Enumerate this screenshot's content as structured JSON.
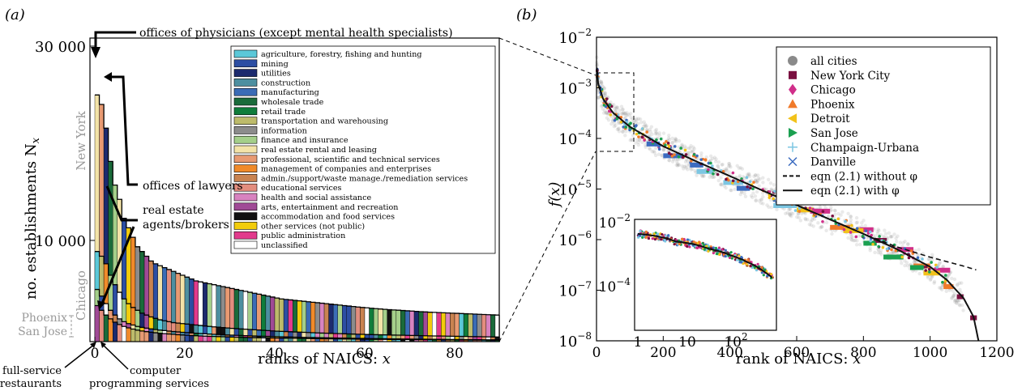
{
  "panel_a": {
    "panel_label": "(a)",
    "ylabel": "no. establishments N",
    "ylabel_sub": "x",
    "xlabel": "ranks of NAICS: ",
    "xlabel_var": "x",
    "y_ticks": [
      "30 000",
      "10 000"
    ],
    "x_ticks": [
      "0",
      "20",
      "40",
      "60",
      "80"
    ],
    "city_labels": [
      "New York",
      "Chicago",
      "Phoenix",
      "San Jose"
    ],
    "annotations": {
      "physicians": "offices of physicians (except mental health specialists)",
      "lawyers": "offices of lawyers",
      "real_estate_1": "real estate",
      "real_estate_2": "agents/brokers",
      "full_service_1": "full-service",
      "full_service_2": "restaurants",
      "computer_1": "computer",
      "computer_2": "programming services"
    },
    "legend": [
      {
        "label": "agriculture, forestry, fishing and hunting",
        "color": "#5bc8d8"
      },
      {
        "label": "mining",
        "color": "#2c4ea3"
      },
      {
        "label": "utilities",
        "color": "#1c2a6e"
      },
      {
        "label": "construction",
        "color": "#4d8fa0"
      },
      {
        "label": "manufacturing",
        "color": "#3b6cb6"
      },
      {
        "label": "wholesale trade",
        "color": "#1a6b3a"
      },
      {
        "label": "retail trade",
        "color": "#0f7d3b"
      },
      {
        "label": "transportation and warehousing",
        "color": "#bdbb6b"
      },
      {
        "label": "information",
        "color": "#8c8c8c"
      },
      {
        "label": "finance and insurance",
        "color": "#a4cf8a"
      },
      {
        "label": "real estate rental and leasing",
        "color": "#f3e3a8"
      },
      {
        "label": "professional, scientific and technical services",
        "color": "#e89a72"
      },
      {
        "label": "management of companies and enterprises",
        "color": "#f08a2a"
      },
      {
        "label": "admin./support/waste manage./remediation services",
        "color": "#c98350"
      },
      {
        "label": "educational services",
        "color": "#e38d7e"
      },
      {
        "label": "health and social assistance",
        "color": "#d883c0"
      },
      {
        "label": "arts, entertainment and recreation",
        "color": "#a04a96"
      },
      {
        "label": "accommodation and food services",
        "color": "#111111"
      },
      {
        "label": "other services (not public)",
        "color": "#f2cc0c"
      },
      {
        "label": "public administration",
        "color": "#e23a8c"
      },
      {
        "label": "unclassified",
        "color": "#ffffff"
      }
    ]
  },
  "panel_b": {
    "panel_label": "(b)",
    "ylabel": "f(x)",
    "xlabel": "rank of NAICS: ",
    "xlabel_var": "x",
    "x_ticks": [
      "0",
      "200",
      "400",
      "600",
      "800",
      "1000",
      "1200"
    ],
    "y_ticks": [
      {
        "base": "10",
        "exp": "−2"
      },
      {
        "base": "10",
        "exp": "−3"
      },
      {
        "base": "10",
        "exp": "−4"
      },
      {
        "base": "10",
        "exp": "−5"
      },
      {
        "base": "10",
        "exp": "−6"
      },
      {
        "base": "10",
        "exp": "−7"
      },
      {
        "base": "10",
        "exp": "−8"
      }
    ],
    "inset": {
      "y_ticks": [
        {
          "base": "10",
          "exp": "−2"
        },
        {
          "base": "10",
          "exp": "−4"
        }
      ],
      "x_ticks": [
        {
          "base": "1",
          "exp": ""
        },
        {
          "base": "10",
          "exp": ""
        },
        {
          "base": "10",
          "exp": "2"
        }
      ]
    },
    "legend": [
      {
        "label": "all cities",
        "marker": "circle",
        "color": "#8a8a8a"
      },
      {
        "label": "New York City",
        "marker": "square",
        "color": "#7a1040"
      },
      {
        "label": "Chicago",
        "marker": "diamond",
        "color": "#d02f8a"
      },
      {
        "label": "Phoenix",
        "marker": "triangle-up",
        "color": "#f07a2a"
      },
      {
        "label": "Detroit",
        "marker": "triangle-left",
        "color": "#f2c21a"
      },
      {
        "label": "San Jose",
        "marker": "triangle-right",
        "color": "#1aa050"
      },
      {
        "label": "Champaign-Urbana",
        "marker": "plus",
        "color": "#7cc6e2"
      },
      {
        "label": "Danville",
        "marker": "x",
        "color": "#3c6cc0"
      },
      {
        "label": "eqn (2.1) without φ",
        "marker": "dashed-line",
        "color": "#111111"
      },
      {
        "label": "eqn (2.1) with φ",
        "marker": "solid-line",
        "color": "#111111"
      }
    ]
  },
  "chart_data": [
    {
      "type": "bar",
      "xlabel": "ranks of NAICS: x",
      "ylabel": "no. establishments N_x",
      "xlim": [
        0,
        90
      ],
      "ylim": [
        0,
        30000
      ],
      "series": [
        {
          "name": "New York",
          "values": [
            26000,
            25000,
            22500,
            19000,
            16500,
            15000,
            13000,
            12000,
            11000,
            10000,
            9500,
            9000,
            8500,
            8200,
            8000,
            7800,
            7600,
            7400,
            7200,
            7000,
            6800,
            6600,
            6400,
            6300,
            6200,
            6100,
            6000,
            5900,
            5800,
            5700,
            5600,
            5500,
            5400,
            5300,
            5200,
            5100,
            5000,
            4900,
            4800,
            4700,
            4600,
            4500,
            4450,
            4400,
            4350,
            4300,
            4250,
            4200,
            4150,
            4100,
            4050,
            4000,
            3950,
            3900,
            3850,
            3800,
            3750,
            3700,
            3650,
            3600,
            3560,
            3520,
            3480,
            3440,
            3400,
            3370,
            3340,
            3310,
            3280,
            3250,
            3220,
            3190,
            3160,
            3130,
            3100,
            3080,
            3060,
            3040,
            3020,
            3000,
            2980,
            2960,
            2940,
            2920,
            2900,
            2880,
            2860,
            2840,
            2820,
            2800
          ]
        },
        {
          "name": "Chicago",
          "values": [
            9500,
            9000,
            8200,
            7000,
            6000,
            5200,
            4500,
            4000,
            3600,
            3300,
            3000,
            2800,
            2600,
            2450,
            2300,
            2200,
            2100,
            2000,
            1950,
            1900,
            1850,
            1800,
            1750,
            1700,
            1650,
            1600,
            1560,
            1520,
            1480,
            1440,
            1400,
            1370,
            1340,
            1310,
            1280,
            1250,
            1220,
            1190,
            1160,
            1130,
            1100,
            1080,
            1060,
            1040,
            1020,
            1000,
            980,
            960,
            940,
            920,
            900,
            885,
            870,
            855,
            840,
            825,
            810,
            795,
            780,
            765,
            750,
            740,
            730,
            720,
            710,
            700,
            690,
            680,
            670,
            660,
            650,
            640,
            630,
            620,
            610,
            600,
            592,
            584,
            576,
            568,
            560,
            552,
            544,
            536,
            528,
            520,
            512,
            504,
            496,
            488
          ]
        },
        {
          "name": "Phoenix",
          "values": [
            5500,
            4800,
            4000,
            3300,
            2800,
            2400,
            2100,
            1900,
            1750,
            1600,
            1500,
            1420,
            1340,
            1270,
            1210,
            1160,
            1110,
            1060,
            1020,
            980,
            945,
            910,
            880,
            850,
            822,
            796,
            770,
            745,
            722,
            700,
            680,
            662,
            644,
            627,
            610,
            594,
            578,
            563,
            548,
            534,
            520,
            508,
            496,
            484,
            472,
            461,
            450,
            440,
            430,
            420,
            410,
            401,
            392,
            383,
            375,
            367,
            359,
            351,
            343,
            336,
            329,
            322,
            315,
            308,
            302,
            296,
            290,
            284,
            278,
            272,
            266,
            261,
            256,
            251,
            246,
            241,
            236,
            231,
            226,
            222,
            218,
            214,
            210,
            206,
            202,
            198,
            194,
            190,
            186,
            182
          ]
        },
        {
          "name": "San Jose",
          "values": [
            3800,
            3300,
            2800,
            2400,
            2050,
            1800,
            1600,
            1450,
            1320,
            1210,
            1120,
            1050,
            990,
            935,
            885,
            840,
            800,
            765,
            732,
            700,
            672,
            646,
            622,
            600,
            580,
            561,
            543,
            526,
            510,
            495,
            481,
            468,
            455,
            443,
            432,
            421,
            411,
            401,
            392,
            383,
            374,
            366,
            358,
            350,
            342,
            335,
            328,
            321,
            314,
            308,
            302,
            296,
            290,
            284,
            279,
            274,
            269,
            264,
            259,
            254,
            249,
            245,
            241,
            237,
            233,
            229,
            225,
            221,
            217,
            213,
            209,
            206,
            203,
            200,
            197,
            194,
            191,
            188,
            185,
            182,
            179,
            176,
            173,
            170,
            167,
            164,
            161,
            158,
            155,
            152
          ]
        }
      ]
    },
    {
      "type": "scatter",
      "xlabel": "rank of NAICS: x",
      "ylabel": "f(x)",
      "xlim": [
        0,
        1200
      ],
      "ylim": [
        1e-08,
        0.01
      ],
      "yscale": "log",
      "series": [
        {
          "name": "eqn (2.1) with φ",
          "x": [
            1,
            5,
            20,
            50,
            100,
            200,
            300,
            400,
            500,
            600,
            700,
            800,
            900,
            1000,
            1050,
            1100,
            1130,
            1145
          ],
          "y": [
            0.0025,
            0.0012,
            0.0006,
            0.00032,
            0.00017,
            7e-05,
            3.5e-05,
            1.8e-05,
            9.2e-06,
            4.8e-06,
            2.5e-06,
            1.3e-06,
            6.5e-07,
            2.9e-07,
            1.6e-07,
            7e-08,
            3e-08,
            1e-08
          ]
        },
        {
          "name": "eqn (2.1) without φ",
          "x": [
            1,
            5,
            20,
            50,
            100,
            200,
            300,
            400,
            500,
            600,
            700,
            800,
            900,
            1000,
            1100,
            1140
          ],
          "y": [
            0.0025,
            0.0012,
            0.0006,
            0.00032,
            0.00017,
            7e-05,
            3.5e-05,
            1.8e-05,
            9.2e-06,
            4.8e-06,
            2.5e-06,
            1.3e-06,
            7.2e-07,
            4.5e-07,
            3e-07,
            2.5e-07
          ]
        }
      ]
    }
  ]
}
